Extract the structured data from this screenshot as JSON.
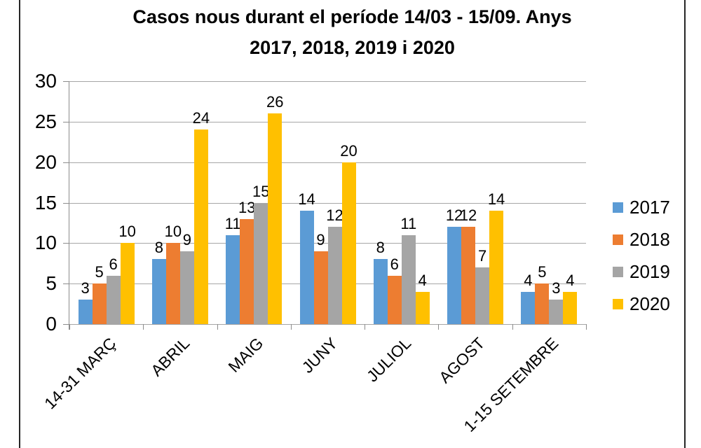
{
  "chart_data": {
    "type": "bar",
    "title_lines": [
      "Casos nous durant el període 14/03 - 15/09. Anys",
      "2017, 2018, 2019 i 2020"
    ],
    "categories": [
      "14-31 MARÇ",
      "ABRIL",
      "MAIG",
      "JUNY",
      "JULIOL",
      "AGOST",
      "1-15 SETEMBRE"
    ],
    "series": [
      {
        "name": "2017",
        "color": "#5B9BD5",
        "values": [
          3,
          8,
          11,
          14,
          8,
          12,
          4
        ]
      },
      {
        "name": "2018",
        "color": "#ED7D31",
        "values": [
          5,
          10,
          13,
          9,
          6,
          12,
          5
        ]
      },
      {
        "name": "2019",
        "color": "#A5A5A5",
        "values": [
          6,
          9,
          15,
          12,
          11,
          7,
          3
        ]
      },
      {
        "name": "2020",
        "color": "#FFC000",
        "values": [
          10,
          24,
          26,
          20,
          4,
          14,
          4
        ]
      }
    ],
    "y_axis": {
      "min": 0,
      "max": 30,
      "step": 5,
      "ticks": [
        "0",
        "5",
        "10",
        "15",
        "20",
        "25",
        "30"
      ]
    },
    "xlabel": "",
    "ylabel": "",
    "grid": true,
    "data_labels": true,
    "legend_position": "right",
    "colors": {
      "grid": "#A6A6A6",
      "axis": "#8C8C8C",
      "frame": "#262626",
      "text": "#000000",
      "background": "#FFFFFF"
    }
  }
}
